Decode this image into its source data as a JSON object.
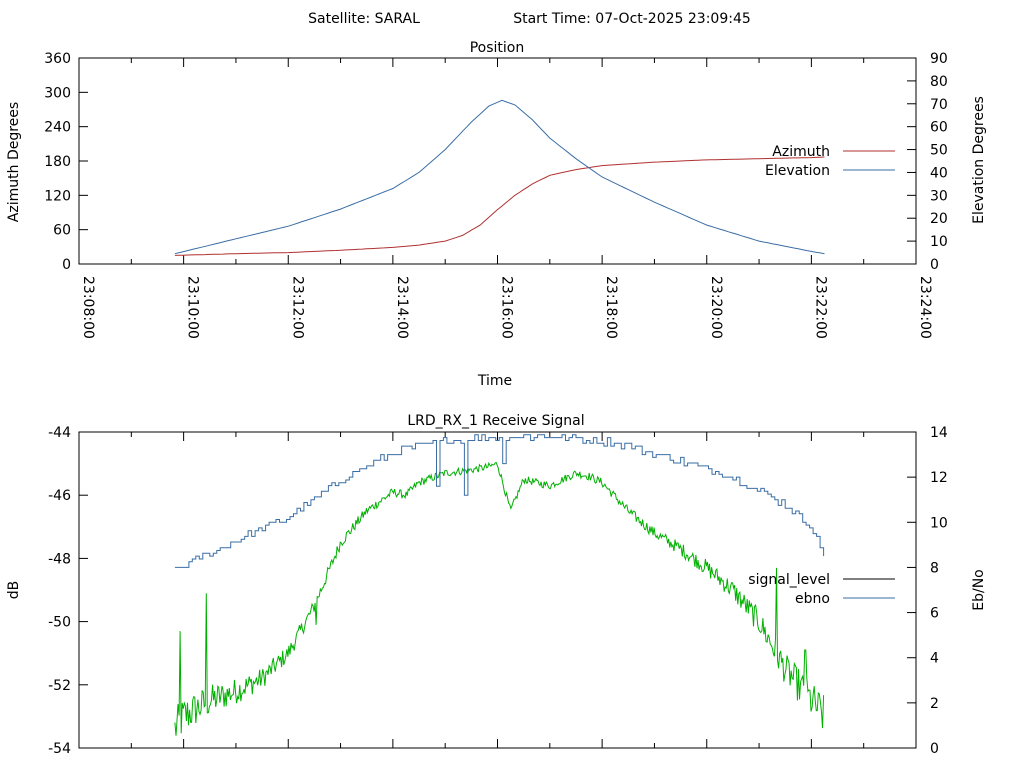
{
  "header": {
    "satellite_text": "Satellite: SARAL",
    "start_time_text": "Start Time: 07-Oct-2025 23:09:45"
  },
  "colors": {
    "azimuth": "#b03030",
    "elevation": "#3a6ea5",
    "signal_level": "#00b000",
    "ebno": "#3a6ea5",
    "legend_signal_level": "#000000"
  },
  "chart_data": [
    {
      "type": "line",
      "title": "Position",
      "xlabel": "Time",
      "ylabel": "Azimuth Degrees",
      "y2label": "Elevation Degrees",
      "xlim": [
        "23:08:00",
        "23:24:00"
      ],
      "ylim": [
        0,
        360
      ],
      "y2lim": [
        0,
        90
      ],
      "x_ticks": [
        "23:08:00",
        "23:10:00",
        "23:12:00",
        "23:14:00",
        "23:16:00",
        "23:18:00",
        "23:20:00",
        "23:22:00",
        "23:24:00"
      ],
      "y_ticks": [
        "0",
        "60",
        "120",
        "180",
        "240",
        "300",
        "360"
      ],
      "y2_ticks": [
        "0",
        "10",
        "20",
        "30",
        "40",
        "50",
        "60",
        "70",
        "80",
        "90"
      ],
      "grid": false,
      "legend": "right",
      "series": [
        {
          "name": "Azimuth",
          "axis": "y",
          "x": [
            "23:09:50",
            "23:11:00",
            "23:12:00",
            "23:13:00",
            "23:14:00",
            "23:14:30",
            "23:15:00",
            "23:15:20",
            "23:15:40",
            "23:16:00",
            "23:16:20",
            "23:16:40",
            "23:17:00",
            "23:17:30",
            "23:18:00",
            "23:19:00",
            "23:20:00",
            "23:21:00",
            "23:22:00",
            "23:22:15"
          ],
          "values": [
            15,
            18,
            20,
            24,
            29,
            33,
            40,
            50,
            68,
            95,
            120,
            140,
            155,
            165,
            172,
            178,
            182,
            184,
            186,
            187
          ]
        },
        {
          "name": "Elevation",
          "axis": "y2",
          "x": [
            "23:09:50",
            "23:11:00",
            "23:12:00",
            "23:13:00",
            "23:14:00",
            "23:14:30",
            "23:15:00",
            "23:15:30",
            "23:15:50",
            "23:16:05",
            "23:16:20",
            "23:16:40",
            "23:17:00",
            "23:17:30",
            "23:18:00",
            "23:19:00",
            "23:20:00",
            "23:21:00",
            "23:22:00",
            "23:22:15"
          ],
          "values": [
            4.5,
            11,
            16.5,
            24,
            33,
            40,
            50,
            62,
            69,
            71.5,
            69.5,
            63,
            55,
            46,
            38,
            27,
            17,
            10,
            5.5,
            4.5
          ]
        }
      ]
    },
    {
      "type": "line",
      "title": "LRD_RX_1 Receive Signal",
      "xlabel": "",
      "ylabel": "dB",
      "y2label": "Eb/No",
      "xlim": [
        "23:08:00",
        "23:24:00"
      ],
      "ylim": [
        -54,
        -44
      ],
      "y2lim": [
        0,
        14
      ],
      "y_ticks": [
        "-54",
        "-52",
        "-50",
        "-48",
        "-46",
        "-44"
      ],
      "y2_ticks": [
        "0",
        "2",
        "4",
        "6",
        "8",
        "10",
        "12",
        "14"
      ],
      "grid": false,
      "legend": "right",
      "series": [
        {
          "name": "signal_level",
          "axis": "y",
          "x": [
            "23:09:50",
            "23:10:00",
            "23:10:30",
            "23:11:00",
            "23:11:30",
            "23:12:00",
            "23:12:30",
            "23:13:00",
            "23:13:30",
            "23:14:00",
            "23:14:15",
            "23:14:30",
            "23:15:00",
            "23:15:30",
            "23:15:50",
            "23:16:00",
            "23:16:15",
            "23:16:30",
            "23:16:45",
            "23:17:00",
            "23:17:30",
            "23:17:45",
            "23:18:00",
            "23:18:30",
            "23:19:00",
            "23:19:30",
            "23:20:00",
            "23:20:30",
            "23:21:00",
            "23:21:30",
            "23:22:00",
            "23:22:15"
          ],
          "values": [
            -53.4,
            -53.0,
            -52.5,
            -52.2,
            -51.8,
            -51.0,
            -49.5,
            -47.5,
            -46.5,
            -45.9,
            -46.0,
            -45.6,
            -45.3,
            -45.2,
            -45.1,
            -45.0,
            -46.5,
            -45.5,
            -45.6,
            -45.7,
            -45.3,
            -45.4,
            -45.6,
            -46.5,
            -47.2,
            -47.7,
            -48.3,
            -49.0,
            -50.0,
            -51.5,
            -52.5,
            -53.0
          ],
          "spikes": [
            {
              "x": "23:09:56",
              "value": -50.3
            },
            {
              "x": "23:10:26",
              "value": -49.1
            },
            {
              "x": "23:12:32",
              "value": -50.1
            },
            {
              "x": "23:21:20",
              "value": -48.3
            },
            {
              "x": "23:21:53",
              "value": -50.9
            }
          ]
        },
        {
          "name": "ebno",
          "axis": "y2",
          "x": [
            "23:09:50",
            "23:10:00",
            "23:10:30",
            "23:11:00",
            "23:11:30",
            "23:12:00",
            "23:12:30",
            "23:13:00",
            "23:13:30",
            "23:14:00",
            "23:14:30",
            "23:15:00",
            "23:15:30",
            "23:16:00",
            "23:16:30",
            "23:17:00",
            "23:17:30",
            "23:18:00",
            "23:18:30",
            "23:19:00",
            "23:19:30",
            "23:20:00",
            "23:20:30",
            "23:21:00",
            "23:21:30",
            "23:22:00",
            "23:22:15"
          ],
          "values": [
            7.9,
            8.1,
            8.6,
            9.2,
            9.7,
            10.2,
            11.0,
            11.9,
            12.5,
            13.1,
            13.4,
            13.6,
            13.75,
            13.8,
            13.8,
            13.8,
            13.7,
            13.6,
            13.4,
            13.0,
            12.7,
            12.4,
            12.0,
            11.4,
            10.8,
            9.8,
            8.5
          ],
          "dips": [
            {
              "x": "23:14:50",
              "value": 11.6
            },
            {
              "x": "23:15:23",
              "value": 11.2
            },
            {
              "x": "23:16:05",
              "value": 12.6
            }
          ]
        }
      ]
    }
  ]
}
